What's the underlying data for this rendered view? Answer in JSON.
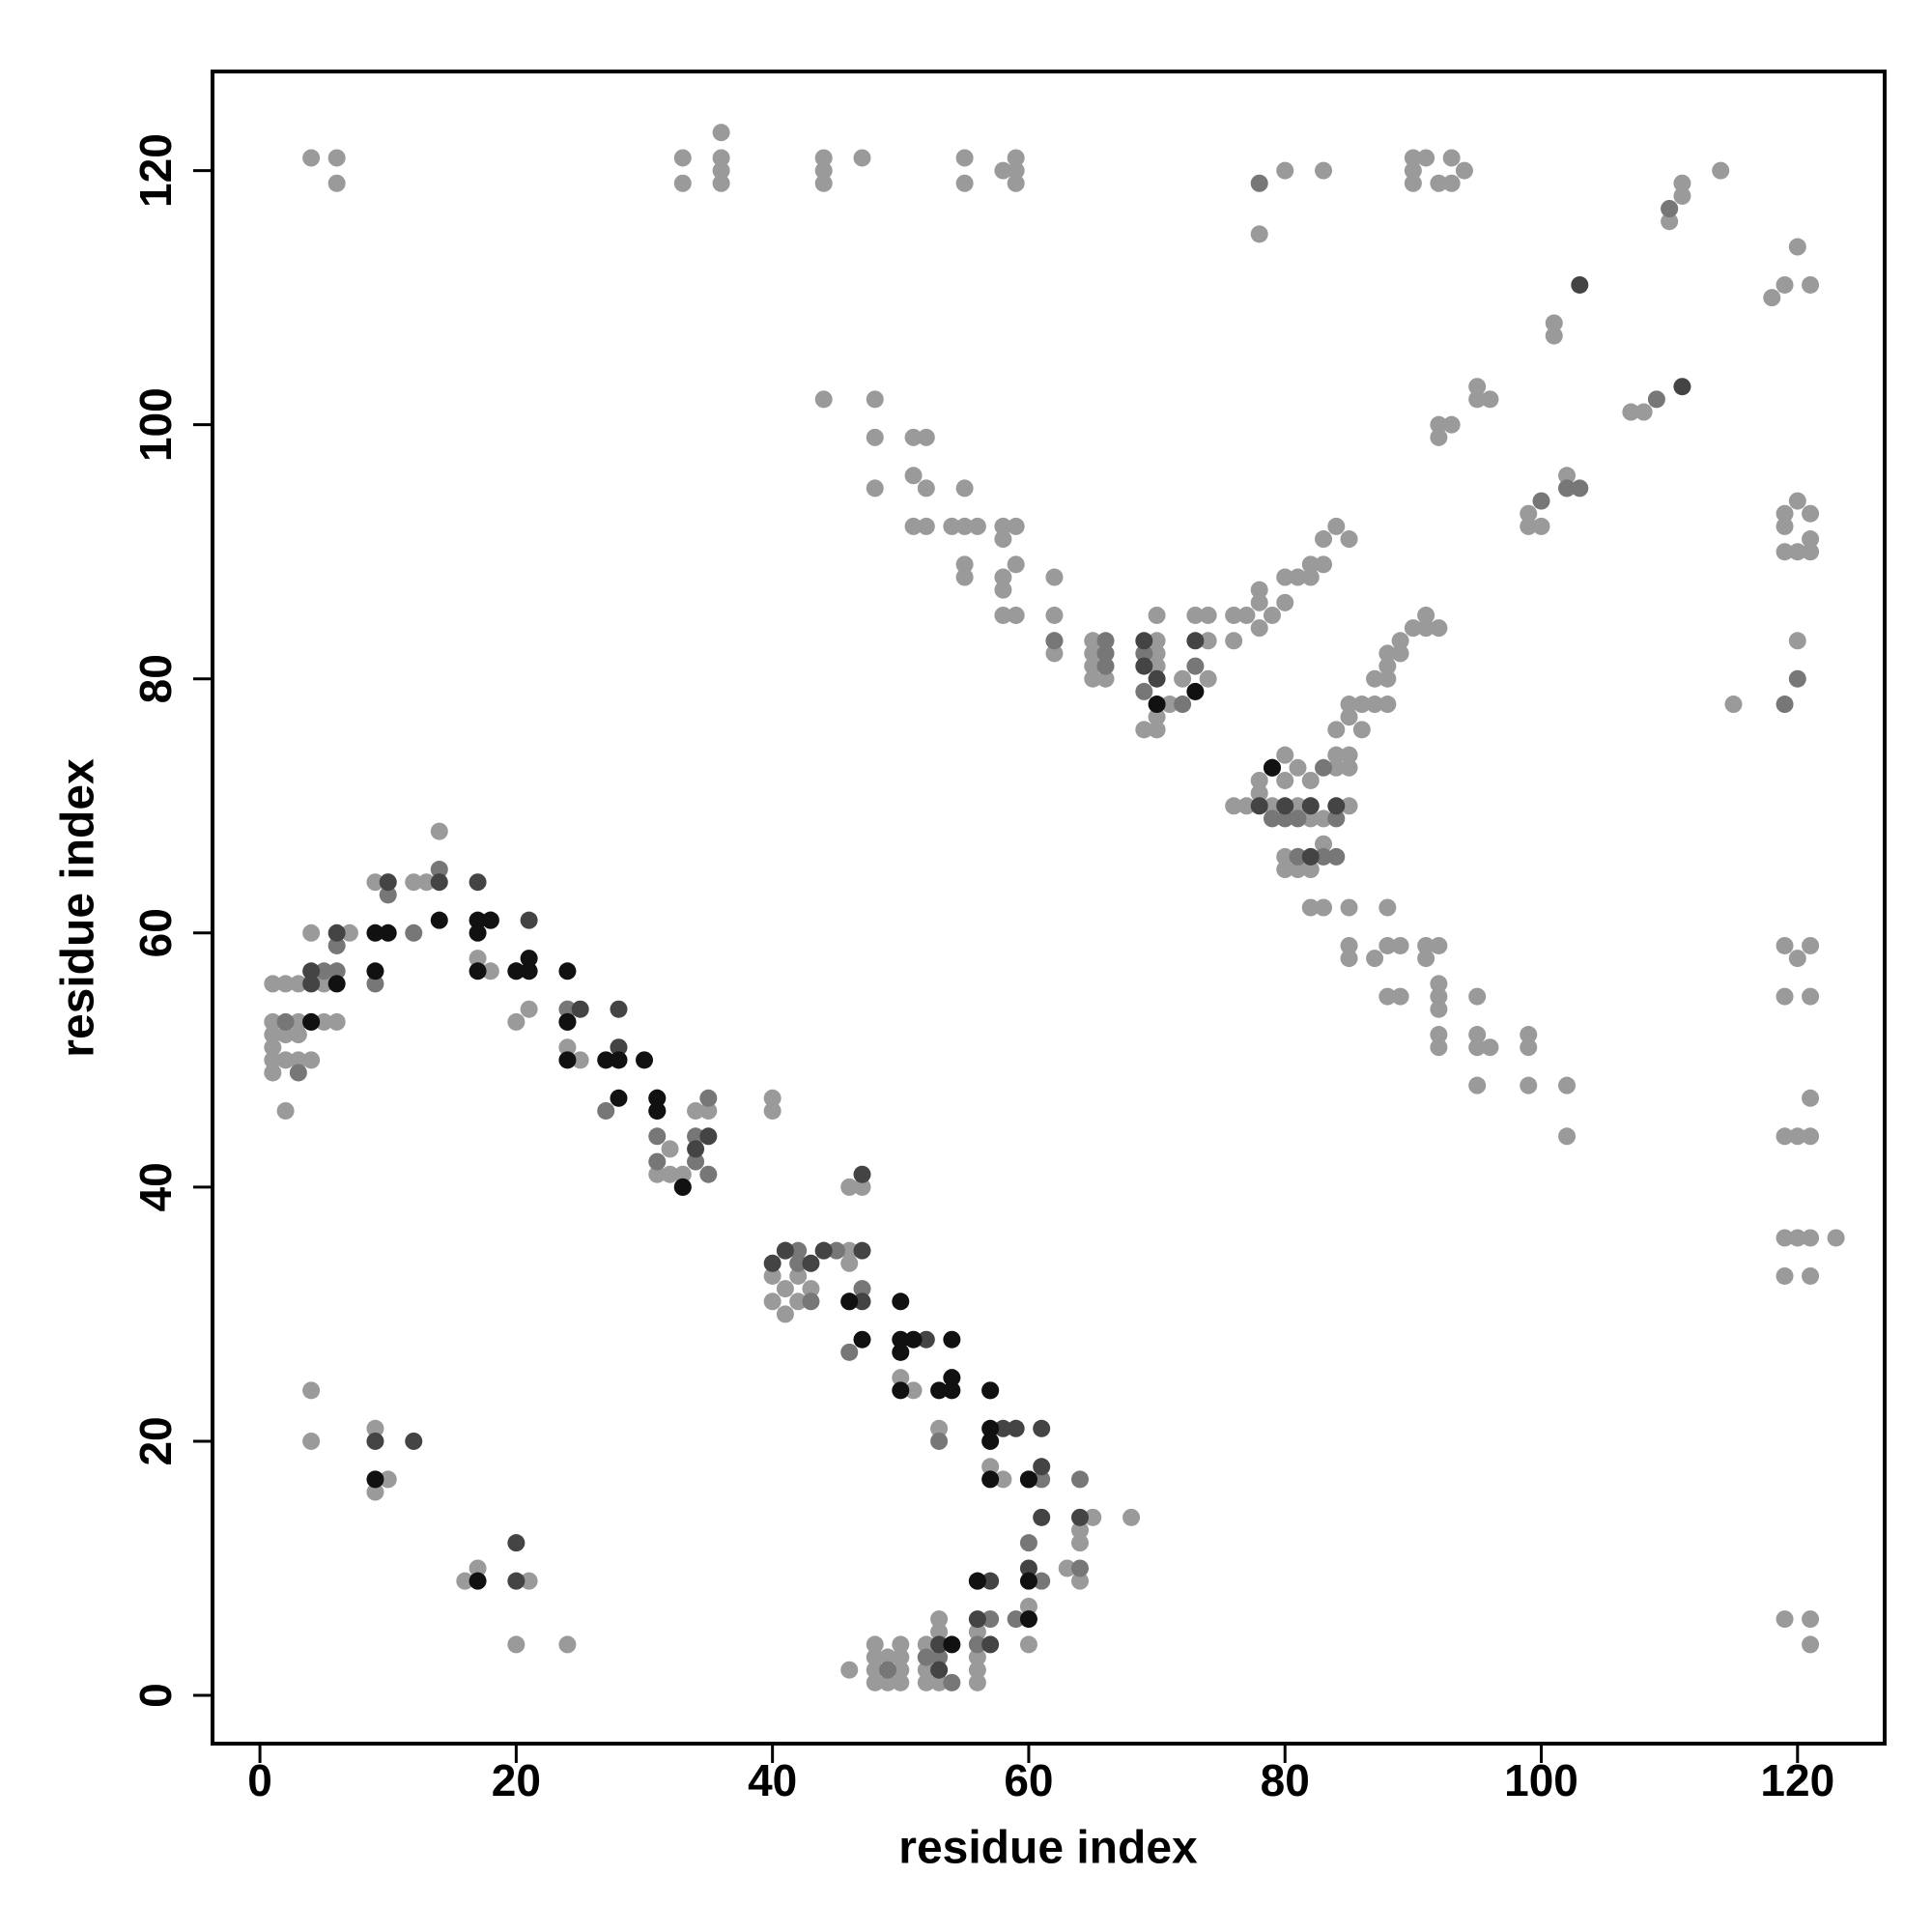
{
  "chart_data": {
    "type": "scatter",
    "x_label": "residue index",
    "y_label": "residue index",
    "xlim": [
      -3.7,
      126.8
    ],
    "ylim": [
      -3.8,
      127.8
    ],
    "xticks": [
      0,
      20,
      40,
      60,
      80,
      100,
      120
    ],
    "yticks": [
      0,
      20,
      40,
      60,
      80,
      100,
      120
    ],
    "series": [
      {
        "color": "#9a9a9a",
        "x": [
          4,
          6,
          6,
          33,
          33,
          36,
          36,
          36,
          36,
          44,
          44,
          44,
          47,
          55,
          55,
          58,
          59,
          59,
          59,
          80,
          83,
          90,
          90,
          90,
          91,
          92,
          93,
          93,
          94,
          78,
          110,
          110,
          111,
          111,
          114,
          118,
          119,
          121,
          120,
          44,
          48,
          48,
          48,
          51,
          52,
          51,
          52,
          51,
          52,
          54,
          55,
          55,
          55,
          55,
          56,
          58,
          58,
          58,
          58,
          58,
          59,
          59,
          59,
          62,
          62,
          62,
          62,
          65,
          65,
          65,
          65,
          66,
          70,
          70,
          70,
          70,
          70,
          70,
          69,
          71,
          72,
          73,
          74,
          74,
          74,
          76,
          76,
          77,
          78,
          78,
          78,
          79,
          80,
          80,
          81,
          82,
          82,
          83,
          83,
          84,
          85,
          88,
          88,
          88,
          89,
          89,
          90,
          91,
          91,
          92,
          92,
          92,
          93,
          95,
          95,
          96,
          99,
          99,
          100,
          101,
          101,
          102,
          102,
          107,
          108,
          76,
          77,
          78,
          78,
          79,
          80,
          80,
          81,
          81,
          82,
          82,
          82,
          83,
          83,
          84,
          84,
          84,
          85,
          85,
          85,
          85,
          85,
          86,
          86,
          87,
          87,
          88,
          80,
          80,
          81,
          81,
          82,
          82,
          83,
          85,
          85,
          85,
          87,
          88,
          88,
          88,
          89,
          89,
          91,
          91,
          92,
          92,
          92,
          92,
          92,
          92,
          95,
          95,
          95,
          96,
          95,
          99,
          99,
          99,
          102,
          102,
          115,
          119,
          120,
          121,
          119,
          121,
          121,
          119,
          120,
          121,
          119,
          120,
          121,
          123,
          119,
          121,
          119,
          121,
          121,
          119,
          119,
          119,
          120,
          120,
          121,
          121,
          121,
          120,
          1,
          1,
          1,
          1,
          1,
          1,
          2,
          2,
          2,
          2,
          3,
          3,
          3,
          3,
          4,
          4,
          5,
          5,
          6,
          7,
          9,
          10,
          12,
          13,
          14,
          17,
          18,
          20,
          21,
          24,
          25,
          31,
          32,
          32,
          33,
          33,
          34,
          35,
          4,
          4,
          9,
          10,
          9,
          16,
          17,
          21,
          20,
          24,
          40,
          40,
          40,
          40,
          41,
          41,
          42,
          42,
          43,
          46,
          46,
          46,
          47,
          46,
          50,
          51,
          53,
          57,
          58,
          60,
          60,
          48,
          48,
          48,
          48,
          49,
          49,
          49,
          50,
          50,
          50,
          50,
          52,
          52,
          52,
          52,
          53,
          53,
          53,
          53,
          53,
          56,
          56,
          56,
          56,
          56,
          64,
          64,
          64,
          65,
          68,
          63
        ],
        "y": [
          121,
          121,
          119,
          121,
          119,
          123,
          121,
          120,
          119,
          121,
          120,
          119,
          121,
          121,
          119,
          120,
          121,
          120,
          119,
          120,
          120,
          121,
          120,
          119,
          121,
          119,
          121,
          119,
          120,
          115,
          117,
          116,
          118,
          119,
          120,
          110,
          111,
          111,
          114,
          102,
          102,
          99,
          95,
          99,
          99,
          96,
          95,
          92,
          92,
          92,
          95,
          92,
          89,
          88,
          92,
          92,
          91,
          88,
          87,
          85,
          92,
          89,
          85,
          88,
          85,
          83,
          82,
          83,
          82,
          81,
          80,
          80,
          85,
          83,
          82,
          81,
          77,
          76,
          76,
          78,
          80,
          85,
          85,
          83,
          80,
          85,
          83,
          85,
          87,
          86,
          84,
          85,
          86,
          88,
          88,
          88,
          89,
          91,
          89,
          92,
          91,
          82,
          81,
          80,
          83,
          82,
          84,
          85,
          84,
          84,
          100,
          99,
          100,
          103,
          102,
          102,
          93,
          92,
          92,
          107,
          108,
          96,
          95,
          101,
          101,
          70,
          70,
          72,
          71,
          70,
          74,
          72,
          73,
          70,
          72,
          70,
          69,
          69,
          67,
          76,
          74,
          73,
          78,
          77,
          74,
          73,
          70,
          78,
          76,
          80,
          78,
          78,
          66,
          65,
          66,
          65,
          65,
          62,
          62,
          62,
          59,
          58,
          58,
          62,
          59,
          55,
          59,
          55,
          59,
          58,
          59,
          56,
          55,
          54,
          52,
          51,
          55,
          52,
          51,
          51,
          48,
          52,
          51,
          48,
          48,
          44,
          78,
          59,
          58,
          59,
          55,
          55,
          47,
          44,
          44,
          44,
          36,
          36,
          36,
          36,
          33,
          33,
          6,
          6,
          4,
          93,
          92,
          90,
          94,
          90,
          93,
          91,
          90,
          83,
          56,
          53,
          52,
          51,
          50,
          49,
          56,
          52,
          50,
          46,
          56,
          53,
          52,
          50,
          60,
          50,
          56,
          53,
          53,
          60,
          64,
          64,
          64,
          64,
          68,
          58,
          57,
          53,
          54,
          51,
          50,
          41,
          41,
          43,
          41,
          40,
          46,
          46,
          24,
          20,
          21,
          17,
          16,
          9,
          10,
          9,
          4,
          4,
          47,
          46,
          33,
          31,
          32,
          30,
          31,
          33,
          32,
          40,
          35,
          34,
          40,
          2,
          25,
          24,
          21,
          18,
          17,
          7,
          4,
          1,
          2,
          3,
          4,
          1,
          2,
          3,
          1,
          2,
          3,
          4,
          1,
          2,
          3,
          4,
          1,
          2,
          4,
          5,
          6,
          1,
          2,
          3,
          4,
          5,
          13,
          12,
          9,
          14,
          14,
          10
        ]
      },
      {
        "color": "#777777",
        "x": [
          78,
          109,
          110,
          100,
          102,
          103,
          66,
          66,
          66,
          69,
          69,
          73,
          72,
          62,
          79,
          80,
          81,
          83,
          83,
          84,
          84,
          81,
          5,
          6,
          6,
          4,
          2,
          3,
          9,
          10,
          12,
          14,
          20,
          24,
          27,
          28,
          31,
          31,
          34,
          34,
          35,
          35,
          42,
          42,
          41,
          44,
          45,
          43,
          47,
          46,
          53,
          56,
          56,
          57,
          59,
          61,
          60,
          61,
          64,
          64,
          49,
          53,
          54,
          52,
          120,
          119
        ],
        "y": [
          119,
          102,
          117,
          94,
          95,
          95,
          83,
          82,
          81,
          82,
          79,
          81,
          78,
          83,
          69,
          69,
          69,
          73,
          66,
          66,
          69,
          66,
          57,
          59,
          57,
          53,
          53,
          49,
          56,
          63,
          60,
          65,
          57,
          54,
          46,
          50,
          44,
          42,
          44,
          42,
          47,
          41,
          34,
          35,
          35,
          35,
          35,
          31,
          32,
          27,
          20,
          9,
          4,
          6,
          6,
          9,
          12,
          17,
          17,
          10,
          2,
          3,
          1,
          3,
          80,
          78
        ]
      },
      {
        "color": "#444444",
        "x": [
          103,
          111,
          69,
          69,
          70,
          73,
          78,
          79,
          80,
          82,
          82,
          84,
          6,
          4,
          4,
          10,
          14,
          18,
          17,
          21,
          24,
          25,
          28,
          28,
          31,
          31,
          34,
          35,
          40,
          41,
          43,
          44,
          47,
          47,
          46,
          47,
          52,
          57,
          60,
          61,
          61,
          61,
          60,
          57,
          58,
          59,
          64,
          9,
          20,
          20,
          12,
          56,
          57,
          53,
          53
        ],
        "y": [
          111,
          103,
          83,
          81,
          80,
          83,
          70,
          73,
          70,
          66,
          70,
          70,
          60,
          57,
          56,
          64,
          64,
          61,
          64,
          61,
          53,
          54,
          54,
          51,
          47,
          46,
          43,
          44,
          34,
          35,
          34,
          35,
          35,
          41,
          31,
          31,
          28,
          24,
          17,
          21,
          18,
          14,
          10,
          9,
          21,
          21,
          14,
          20,
          9,
          12,
          20,
          6,
          4,
          4,
          2
        ]
      },
      {
        "color": "#111111",
        "x": [
          4,
          6,
          9,
          9,
          10,
          14,
          17,
          17,
          17,
          18,
          21,
          21,
          20,
          24,
          24,
          28,
          27,
          28,
          30,
          31,
          24,
          31,
          33,
          46,
          47,
          50,
          50,
          50,
          50,
          51,
          53,
          54,
          54,
          54,
          57,
          57,
          57,
          57,
          60,
          60,
          60,
          56,
          54,
          9,
          17,
          70,
          73,
          79
        ],
        "y": [
          53,
          56,
          57,
          60,
          60,
          61,
          61,
          60,
          57,
          61,
          57,
          58,
          57,
          57,
          50,
          47,
          50,
          50,
          50,
          47,
          53,
          46,
          40,
          31,
          28,
          31,
          28,
          27,
          24,
          28,
          24,
          28,
          25,
          24,
          24,
          21,
          20,
          17,
          17,
          9,
          6,
          9,
          4,
          17,
          9,
          78,
          79,
          73
        ]
      }
    ]
  }
}
